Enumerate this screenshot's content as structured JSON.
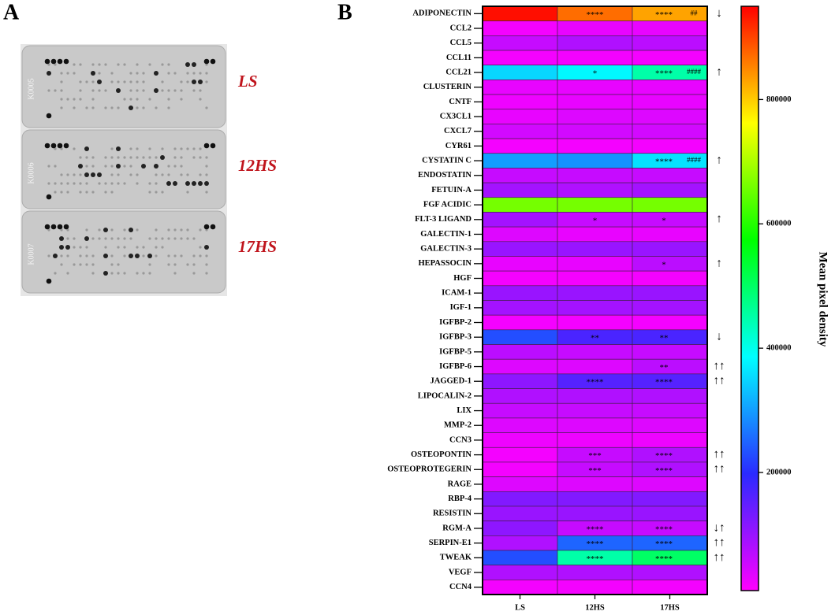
{
  "panel_a": {
    "label": "A",
    "membranes": [
      {
        "id": "K0005",
        "label": "LS"
      },
      {
        "id": "K0006",
        "label": "12HS"
      },
      {
        "id": "K0007",
        "label": "17HS"
      }
    ]
  },
  "chart_data": {
    "type": "heatmap",
    "panel_label": "B",
    "categories": [
      "ADIPONECTIN",
      "CCL2",
      "CCL5",
      "CCL11",
      "CCL21",
      "CLUSTERIN",
      "CNTF",
      "CX3CL1",
      "CXCL7",
      "CYR61",
      "CYSTATIN C",
      "ENDOSTATIN",
      "FETUIN-A",
      "FGF ACIDIC",
      "FLT-3 LIGAND",
      "GALECTIN-1",
      "GALECTIN-3",
      "HEPASSOCIN",
      "HGF",
      "ICAM-1",
      "IGF-1",
      "IGFBP-2",
      "IGFBP-3",
      "IGFBP-5",
      "IGFBP-6",
      "JAGGED-1",
      "LIPOCALIN-2",
      "LIX",
      "MMP-2",
      "CCN3",
      "OSTEOPONTIN",
      "OSTEOPROTEGERIN",
      "RAGE",
      "RBP-4",
      "RESISTIN",
      "RGM-A",
      "SERPIN-E1",
      "TWEAK",
      "VEGF",
      "CCN4"
    ],
    "series": [
      {
        "name": "LS",
        "values": [
          940000,
          20000,
          60000,
          20000,
          350000,
          30000,
          25000,
          30000,
          50000,
          20000,
          300000,
          60000,
          90000,
          660000,
          90000,
          40000,
          100000,
          30000,
          20000,
          100000,
          90000,
          20000,
          230000,
          70000,
          40000,
          110000,
          80000,
          60000,
          40000,
          25000,
          20000,
          20000,
          40000,
          120000,
          100000,
          110000,
          80000,
          230000,
          80000,
          20000
        ]
      },
      {
        "name": "12HS",
        "values": [
          870000,
          30000,
          80000,
          20000,
          380000,
          30000,
          30000,
          40000,
          50000,
          20000,
          290000,
          60000,
          80000,
          660000,
          60000,
          30000,
          100000,
          30000,
          20000,
          100000,
          90000,
          20000,
          170000,
          60000,
          40000,
          160000,
          80000,
          60000,
          40000,
          25000,
          60000,
          60000,
          40000,
          120000,
          100000,
          60000,
          250000,
          450000,
          80000,
          20000
        ],
        "stars": [
          "****",
          null,
          null,
          null,
          "*",
          null,
          null,
          null,
          null,
          null,
          null,
          null,
          null,
          null,
          "*",
          null,
          null,
          null,
          null,
          null,
          null,
          null,
          "**",
          null,
          null,
          "****",
          null,
          null,
          null,
          null,
          "***",
          "***",
          null,
          null,
          null,
          "****",
          "****",
          "****",
          null,
          null
        ]
      },
      {
        "name": "17HS",
        "values": [
          830000,
          30000,
          70000,
          20000,
          450000,
          30000,
          30000,
          40000,
          50000,
          20000,
          360000,
          60000,
          90000,
          660000,
          60000,
          30000,
          100000,
          70000,
          20000,
          100000,
          90000,
          20000,
          170000,
          60000,
          70000,
          160000,
          80000,
          60000,
          40000,
          25000,
          80000,
          80000,
          40000,
          120000,
          100000,
          60000,
          250000,
          500000,
          80000,
          20000
        ],
        "stars": [
          "****",
          null,
          null,
          null,
          "****",
          null,
          null,
          null,
          null,
          null,
          "****",
          null,
          null,
          null,
          "*",
          null,
          null,
          "*",
          null,
          null,
          null,
          null,
          "**",
          null,
          "**",
          "****",
          null,
          null,
          null,
          null,
          "****",
          "****",
          null,
          null,
          null,
          "****",
          "****",
          "****",
          null,
          null
        ],
        "hashes": [
          "##",
          null,
          null,
          null,
          "####",
          null,
          null,
          null,
          null,
          null,
          "####",
          null,
          null,
          null,
          null,
          null,
          null,
          null,
          null,
          null,
          null,
          null,
          null,
          null,
          null,
          null,
          null,
          null,
          null,
          null,
          null,
          null,
          null,
          null,
          null,
          null,
          null,
          null,
          null,
          null
        ]
      }
    ],
    "trend": [
      "↓",
      null,
      null,
      null,
      "↑",
      null,
      null,
      null,
      null,
      null,
      "↑",
      null,
      null,
      null,
      "↑",
      null,
      null,
      "↑",
      null,
      null,
      null,
      null,
      "↓",
      null,
      "↑↑",
      "↑↑",
      null,
      null,
      null,
      null,
      "↑↑",
      "↑↑",
      null,
      null,
      null,
      "↓↑",
      "↑↑",
      "↑↑",
      null,
      null
    ],
    "zlim": [
      10000,
      950000
    ],
    "zticks": [
      200000,
      400000,
      600000,
      800000
    ],
    "colormap": [
      "#ff00ff",
      "#2a2aff",
      "#00ffff",
      "#00ff00",
      "#ffff00",
      "#ff0000"
    ],
    "colorbar_label": "Mean pixel density"
  }
}
